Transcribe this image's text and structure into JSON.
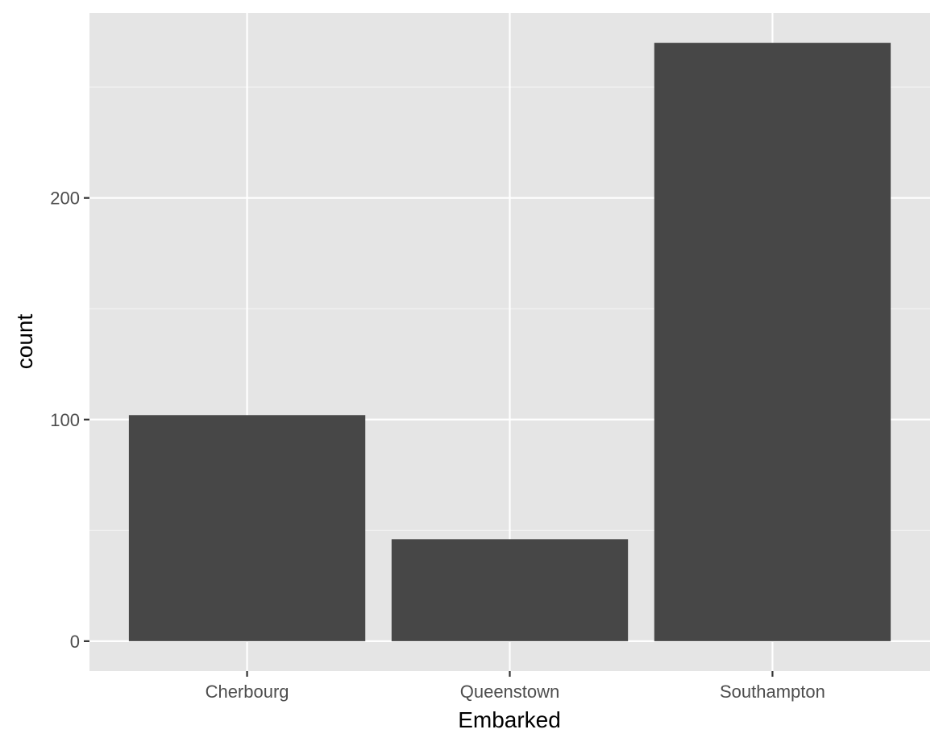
{
  "chart_data": {
    "type": "bar",
    "categories": [
      "Cherbourg",
      "Queenstown",
      "Southampton"
    ],
    "values": [
      102,
      46,
      270
    ],
    "title": "",
    "xlabel": "Embarked",
    "ylabel": "count",
    "ylim": [
      -13.5,
      283.5
    ],
    "yticks": [
      0,
      100,
      200
    ],
    "yticks_minor": [
      50,
      150,
      250
    ],
    "grid": true,
    "colors": {
      "bar": "#474747",
      "panel_background": "#e5e5e5",
      "grid_major": "#ffffff",
      "grid_minor": "#f2f2f2",
      "tick_mark": "#333333",
      "tick_label": "#4d4d4d"
    }
  }
}
